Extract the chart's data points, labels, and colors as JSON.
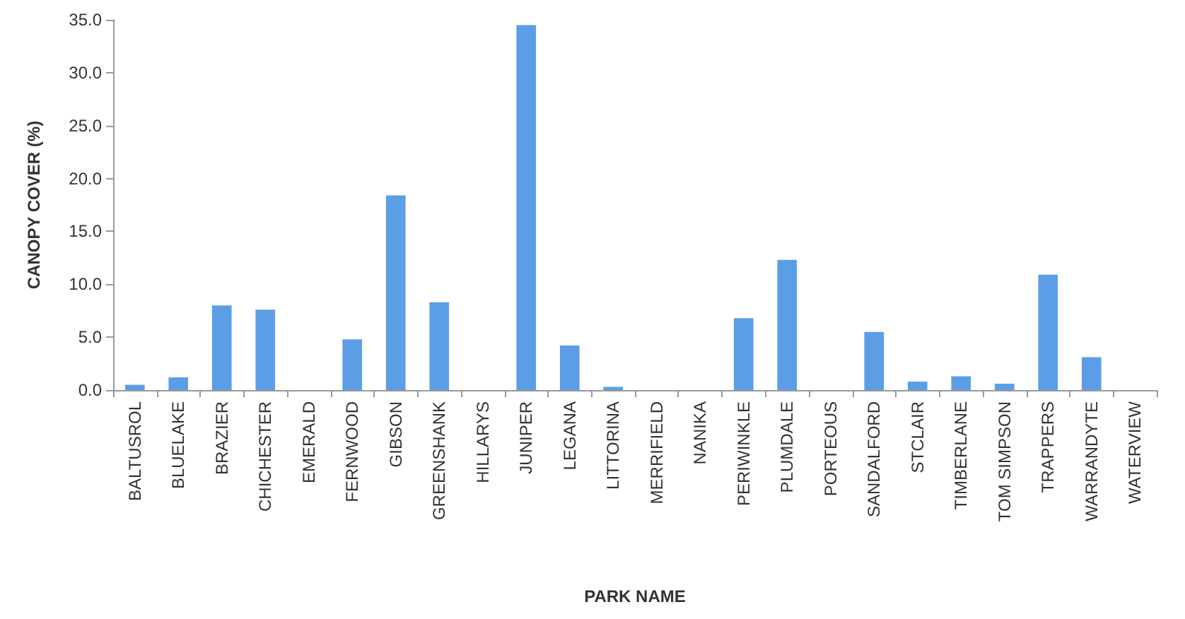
{
  "chart_data": {
    "type": "bar",
    "xlabel": "PARK NAME",
    "ylabel": "CANOPY COVER (%)",
    "categories": [
      "BALTUSROL",
      "BLUELAKE",
      "BRAZIER",
      "CHICHESTER",
      "EMERALD",
      "FERNWOOD",
      "GIBSON",
      "GREENSHANK",
      "HILLARYS",
      "JUNIPER",
      "LEGANA",
      "LITTORINA",
      "MERRIFIELD",
      "NANIKA",
      "PERIWINKLE",
      "PLUMDALE",
      "PORTEOUS",
      "SANDALFORD",
      "STCLAIR",
      "TIMBERLANE",
      "TOM SIMPSON",
      "TRAPPERS",
      "WARRANDYTE",
      "WATERVIEW"
    ],
    "values": [
      0.5,
      1.2,
      8.0,
      7.6,
      0,
      4.8,
      18.4,
      8.3,
      0,
      34.5,
      4.2,
      0.3,
      0,
      0,
      6.8,
      12.3,
      0,
      5.5,
      0.8,
      1.3,
      0.6,
      10.9,
      3.1,
      0
    ],
    "color": "#5b9ee6",
    "ylim": [
      0,
      35
    ],
    "yticks": [
      {
        "value": 0,
        "label": "0.0"
      },
      {
        "value": 5,
        "label": "5.0"
      },
      {
        "value": 10,
        "label": "10.0"
      },
      {
        "value": 15,
        "label": "15.0"
      },
      {
        "value": 20,
        "label": "20.0"
      },
      {
        "value": 25,
        "label": "25.0"
      },
      {
        "value": 30,
        "label": "30.0"
      },
      {
        "value": 35,
        "label": "35.0"
      }
    ],
    "grid": false
  }
}
